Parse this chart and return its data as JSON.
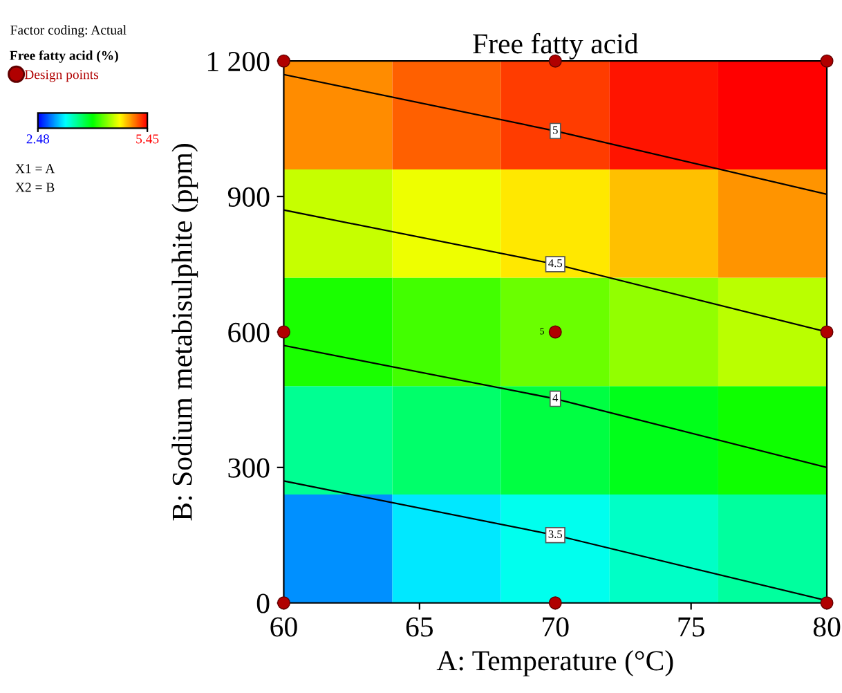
{
  "chart_data": {
    "type": "heatmap",
    "title": "Free fatty acid",
    "xlabel": "A: Temperature (°C)",
    "ylabel": "B: Sodium metabisulphite (ppm)",
    "legend_title": "Free fatty acid (%)",
    "xlim": [
      60,
      80
    ],
    "xticks": [
      60,
      65,
      70,
      75,
      80
    ],
    "ylim": [
      0,
      1200
    ],
    "yticks": [
      0,
      300,
      600,
      900,
      {
        "value": 1200,
        "label": "1 200"
      }
    ],
    "cells": [
      [
        5.04,
        5.16,
        5.27,
        5.39,
        5.45
      ],
      [
        4.54,
        4.66,
        4.77,
        4.89,
        5.01
      ],
      [
        4.04,
        4.16,
        4.27,
        4.39,
        4.51
      ],
      [
        3.54,
        3.66,
        3.77,
        3.89,
        4.01
      ],
      [
        2.9,
        3.16,
        3.27,
        3.39,
        3.51
      ]
    ],
    "clim": [
      2.48,
      5.45
    ],
    "cticks": [
      2.48,
      5.45
    ],
    "series": [
      {
        "name": "Design points",
        "type": "scatter",
        "color": "#b00000",
        "marker": "circle",
        "x": [
          60,
          70,
          80,
          60,
          70,
          80,
          60,
          70,
          80
        ],
        "values": [
          1200,
          1200,
          1200,
          600,
          600,
          600,
          0,
          0,
          0
        ]
      },
      {
        "name": "5",
        "type": "line",
        "color": "#000000",
        "x": [
          60,
          70,
          80
        ],
        "values": [
          1170,
          1045,
          905
        ]
      },
      {
        "name": "4.5",
        "type": "line",
        "color": "#000000",
        "x": [
          60,
          70,
          80
        ],
        "values": [
          870,
          750,
          600
        ]
      },
      {
        "name": "4",
        "type": "line",
        "color": "#000000",
        "x": [
          60,
          70,
          80
        ],
        "values": [
          570,
          452,
          300
        ]
      },
      {
        "name": "3.5",
        "type": "line",
        "color": "#000000",
        "x": [
          60,
          70,
          80
        ],
        "values": [
          270,
          150,
          5
        ]
      }
    ],
    "annotations": [
      "Factor coding: Actual",
      "X1 = A",
      "X2 = B",
      {
        "text": "5",
        "x": 70,
        "y": 600
      }
    ],
    "legend": "top left",
    "grid": false
  }
}
